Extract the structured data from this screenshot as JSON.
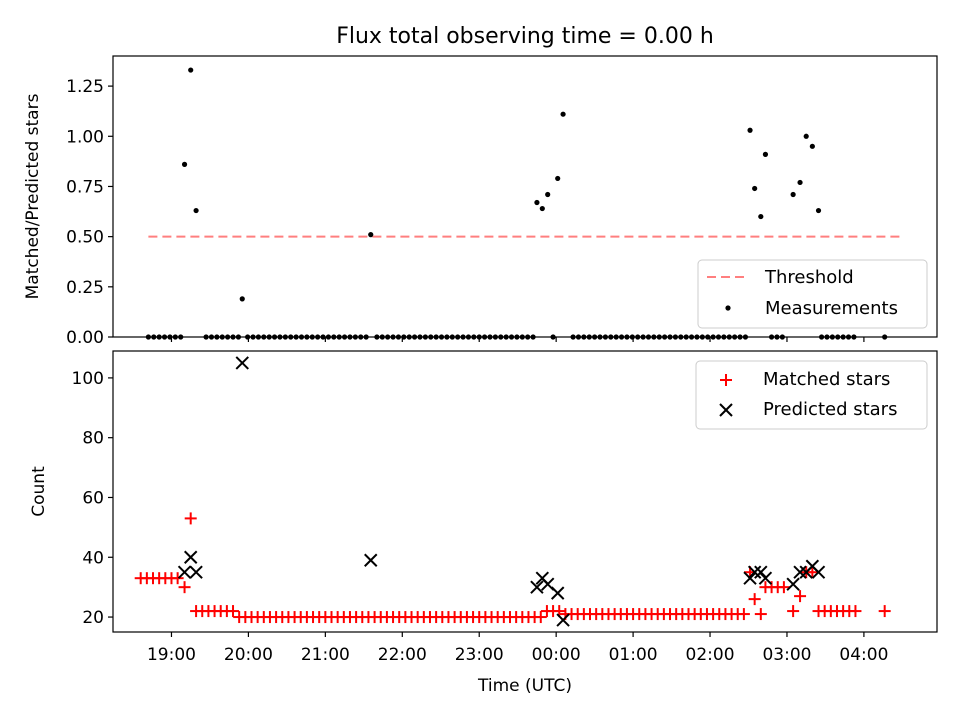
{
  "chart_data": [
    {
      "type": "scatter",
      "title": "Flux total observing time = 0.00 h",
      "xlabel": "",
      "ylabel": "Matched/Predicted stars",
      "x_unit": "hours since 18:00 UTC",
      "xlim": [
        0.24,
        10.95
      ],
      "ylim": [
        0.0,
        1.4
      ],
      "y_ticks": [
        0.0,
        0.25,
        0.5,
        0.75,
        1.0,
        1.25
      ],
      "y_tick_labels": [
        "0.00",
        "0.25",
        "0.50",
        "0.75",
        "1.00",
        "1.25"
      ],
      "x_ticks": [
        1,
        2,
        3,
        4,
        5,
        6,
        7,
        8,
        9,
        10
      ],
      "grid": false,
      "legend_position": "lower-right",
      "threshold": {
        "name": "Threshold",
        "y": 0.5,
        "x_range": [
          0.7,
          10.48
        ],
        "color": "#ff7f7f",
        "style": "dashed"
      },
      "measurements": {
        "name": "Measurements",
        "color": "#000000",
        "points": [
          [
            0.7,
            0.0
          ],
          [
            0.77,
            0.0
          ],
          [
            0.84,
            0.0
          ],
          [
            0.91,
            0.0
          ],
          [
            0.98,
            0.0
          ],
          [
            1.05,
            0.0
          ],
          [
            1.12,
            0.0
          ],
          [
            1.17,
            0.86
          ],
          [
            1.25,
            1.33
          ],
          [
            1.32,
            0.63
          ],
          [
            1.45,
            0.0
          ],
          [
            1.52,
            0.0
          ],
          [
            1.59,
            0.0
          ],
          [
            1.66,
            0.0
          ],
          [
            1.73,
            0.0
          ],
          [
            1.8,
            0.0
          ],
          [
            1.87,
            0.0
          ],
          [
            1.92,
            0.19
          ],
          [
            1.99,
            0.0
          ],
          [
            2.06,
            0.0
          ],
          [
            2.13,
            0.0
          ],
          [
            2.2,
            0.0
          ],
          [
            2.27,
            0.0
          ],
          [
            2.34,
            0.0
          ],
          [
            2.41,
            0.0
          ],
          [
            2.48,
            0.0
          ],
          [
            2.55,
            0.0
          ],
          [
            2.62,
            0.0
          ],
          [
            2.69,
            0.0
          ],
          [
            2.76,
            0.0
          ],
          [
            2.83,
            0.0
          ],
          [
            2.9,
            0.0
          ],
          [
            2.97,
            0.0
          ],
          [
            3.04,
            0.0
          ],
          [
            3.11,
            0.0
          ],
          [
            3.18,
            0.0
          ],
          [
            3.25,
            0.0
          ],
          [
            3.32,
            0.0
          ],
          [
            3.39,
            0.0
          ],
          [
            3.46,
            0.0
          ],
          [
            3.53,
            0.0
          ],
          [
            3.59,
            0.51
          ],
          [
            3.67,
            0.0
          ],
          [
            3.74,
            0.0
          ],
          [
            3.81,
            0.0
          ],
          [
            3.88,
            0.0
          ],
          [
            3.95,
            0.0
          ],
          [
            4.02,
            0.0
          ],
          [
            4.09,
            0.0
          ],
          [
            4.16,
            0.0
          ],
          [
            4.23,
            0.0
          ],
          [
            4.3,
            0.0
          ],
          [
            4.37,
            0.0
          ],
          [
            4.44,
            0.0
          ],
          [
            4.51,
            0.0
          ],
          [
            4.58,
            0.0
          ],
          [
            4.65,
            0.0
          ],
          [
            4.72,
            0.0
          ],
          [
            4.79,
            0.0
          ],
          [
            4.86,
            0.0
          ],
          [
            4.93,
            0.0
          ],
          [
            5.0,
            0.0
          ],
          [
            5.07,
            0.0
          ],
          [
            5.14,
            0.0
          ],
          [
            5.21,
            0.0
          ],
          [
            5.28,
            0.0
          ],
          [
            5.35,
            0.0
          ],
          [
            5.42,
            0.0
          ],
          [
            5.49,
            0.0
          ],
          [
            5.56,
            0.0
          ],
          [
            5.63,
            0.0
          ],
          [
            5.7,
            0.0
          ],
          [
            5.75,
            0.67
          ],
          [
            5.82,
            0.64
          ],
          [
            5.89,
            0.71
          ],
          [
            5.96,
            0.0
          ],
          [
            6.02,
            0.79
          ],
          [
            6.09,
            1.11
          ],
          [
            6.22,
            0.0
          ],
          [
            6.29,
            0.0
          ],
          [
            6.36,
            0.0
          ],
          [
            6.43,
            0.0
          ],
          [
            6.5,
            0.0
          ],
          [
            6.57,
            0.0
          ],
          [
            6.64,
            0.0
          ],
          [
            6.71,
            0.0
          ],
          [
            6.78,
            0.0
          ],
          [
            6.85,
            0.0
          ],
          [
            6.92,
            0.0
          ],
          [
            6.99,
            0.0
          ],
          [
            7.06,
            0.0
          ],
          [
            7.13,
            0.0
          ],
          [
            7.2,
            0.0
          ],
          [
            7.27,
            0.0
          ],
          [
            7.34,
            0.0
          ],
          [
            7.41,
            0.0
          ],
          [
            7.48,
            0.0
          ],
          [
            7.55,
            0.0
          ],
          [
            7.62,
            0.0
          ],
          [
            7.69,
            0.0
          ],
          [
            7.76,
            0.0
          ],
          [
            7.83,
            0.0
          ],
          [
            7.9,
            0.0
          ],
          [
            7.97,
            0.0
          ],
          [
            8.04,
            0.0
          ],
          [
            8.11,
            0.0
          ],
          [
            8.18,
            0.0
          ],
          [
            8.25,
            0.0
          ],
          [
            8.32,
            0.0
          ],
          [
            8.39,
            0.0
          ],
          [
            8.46,
            0.0
          ],
          [
            8.52,
            1.03
          ],
          [
            8.58,
            0.74
          ],
          [
            8.66,
            0.6
          ],
          [
            8.72,
            0.91
          ],
          [
            8.8,
            0.0
          ],
          [
            8.87,
            0.0
          ],
          [
            8.94,
            0.0
          ],
          [
            9.08,
            0.71
          ],
          [
            9.17,
            0.77
          ],
          [
            9.25,
            1.0
          ],
          [
            9.33,
            0.95
          ],
          [
            9.41,
            0.63
          ],
          [
            9.45,
            0.0
          ],
          [
            9.52,
            0.0
          ],
          [
            9.59,
            0.0
          ],
          [
            9.66,
            0.0
          ],
          [
            9.73,
            0.0
          ],
          [
            9.8,
            0.0
          ],
          [
            9.87,
            0.0
          ],
          [
            10.27,
            0.0
          ]
        ]
      },
      "legend": [
        "Threshold",
        "Measurements"
      ]
    },
    {
      "type": "scatter",
      "title": "",
      "xlabel": "Time (UTC)",
      "ylabel": "Count",
      "x_unit": "hours since 18:00 UTC",
      "xlim": [
        0.24,
        10.95
      ],
      "ylim": [
        15.0,
        109.0
      ],
      "y_ticks": [
        20,
        40,
        60,
        80,
        100
      ],
      "y_tick_labels": [
        "20",
        "40",
        "60",
        "80",
        "100"
      ],
      "x_ticks": [
        1,
        2,
        3,
        4,
        5,
        6,
        7,
        8,
        9,
        10
      ],
      "x_tick_labels": [
        "19:00",
        "20:00",
        "21:00",
        "22:00",
        "23:00",
        "00:00",
        "01:00",
        "02:00",
        "03:00",
        "04:00"
      ],
      "grid": false,
      "legend_position": "upper-right",
      "series": [
        {
          "name": "Matched stars",
          "marker": "plus",
          "color": "#ff0000",
          "points": [
            [
              0.6,
              33
            ],
            [
              0.68,
              33
            ],
            [
              0.76,
              33
            ],
            [
              0.84,
              33
            ],
            [
              0.92,
              33
            ],
            [
              1.0,
              33
            ],
            [
              1.08,
              33
            ],
            [
              1.17,
              30
            ],
            [
              1.25,
              53
            ],
            [
              1.32,
              22
            ],
            [
              1.4,
              22
            ],
            [
              1.48,
              22
            ],
            [
              1.56,
              22
            ],
            [
              1.64,
              22
            ],
            [
              1.72,
              22
            ],
            [
              1.8,
              22
            ],
            [
              1.88,
              20
            ],
            [
              1.96,
              20
            ],
            [
              2.04,
              20
            ],
            [
              2.12,
              20
            ],
            [
              2.2,
              20
            ],
            [
              2.28,
              20
            ],
            [
              2.36,
              20
            ],
            [
              2.44,
              20
            ],
            [
              2.52,
              20
            ],
            [
              2.6,
              20
            ],
            [
              2.68,
              20
            ],
            [
              2.76,
              20
            ],
            [
              2.84,
              20
            ],
            [
              2.92,
              20
            ],
            [
              3.0,
              20
            ],
            [
              3.08,
              20
            ],
            [
              3.16,
              20
            ],
            [
              3.24,
              20
            ],
            [
              3.32,
              20
            ],
            [
              3.4,
              20
            ],
            [
              3.48,
              20
            ],
            [
              3.56,
              20
            ],
            [
              3.64,
              20
            ],
            [
              3.72,
              20
            ],
            [
              3.8,
              20
            ],
            [
              3.88,
              20
            ],
            [
              3.96,
              20
            ],
            [
              4.04,
              20
            ],
            [
              4.12,
              20
            ],
            [
              4.2,
              20
            ],
            [
              4.28,
              20
            ],
            [
              4.36,
              20
            ],
            [
              4.44,
              20
            ],
            [
              4.52,
              20
            ],
            [
              4.6,
              20
            ],
            [
              4.68,
              20
            ],
            [
              4.76,
              20
            ],
            [
              4.84,
              20
            ],
            [
              4.92,
              20
            ],
            [
              5.0,
              20
            ],
            [
              5.08,
              20
            ],
            [
              5.16,
              20
            ],
            [
              5.24,
              20
            ],
            [
              5.32,
              20
            ],
            [
              5.4,
              20
            ],
            [
              5.48,
              20
            ],
            [
              5.56,
              20
            ],
            [
              5.64,
              20
            ],
            [
              5.72,
              20
            ],
            [
              5.8,
              20
            ],
            [
              5.88,
              22
            ],
            [
              5.96,
              22
            ],
            [
              6.04,
              22
            ],
            [
              6.12,
              21
            ],
            [
              6.2,
              21
            ],
            [
              6.28,
              21
            ],
            [
              6.36,
              21
            ],
            [
              6.44,
              21
            ],
            [
              6.52,
              21
            ],
            [
              6.6,
              21
            ],
            [
              6.68,
              21
            ],
            [
              6.76,
              21
            ],
            [
              6.84,
              21
            ],
            [
              6.92,
              21
            ],
            [
              7.0,
              21
            ],
            [
              7.08,
              21
            ],
            [
              7.16,
              21
            ],
            [
              7.24,
              21
            ],
            [
              7.32,
              21
            ],
            [
              7.4,
              21
            ],
            [
              7.48,
              21
            ],
            [
              7.56,
              21
            ],
            [
              7.64,
              21
            ],
            [
              7.72,
              21
            ],
            [
              7.8,
              21
            ],
            [
              7.88,
              21
            ],
            [
              7.96,
              21
            ],
            [
              8.04,
              21
            ],
            [
              8.12,
              21
            ],
            [
              8.2,
              21
            ],
            [
              8.28,
              21
            ],
            [
              8.36,
              21
            ],
            [
              8.44,
              21
            ],
            [
              8.52,
              35
            ],
            [
              8.58,
              26
            ],
            [
              8.66,
              21
            ],
            [
              8.72,
              30
            ],
            [
              8.8,
              30
            ],
            [
              8.88,
              30
            ],
            [
              8.96,
              30
            ],
            [
              9.08,
              22
            ],
            [
              9.17,
              27
            ],
            [
              9.25,
              35
            ],
            [
              9.33,
              35
            ],
            [
              9.41,
              22
            ],
            [
              9.49,
              22
            ],
            [
              9.57,
              22
            ],
            [
              9.65,
              22
            ],
            [
              9.73,
              22
            ],
            [
              9.81,
              22
            ],
            [
              9.89,
              22
            ],
            [
              10.27,
              22
            ]
          ]
        },
        {
          "name": "Predicted stars",
          "marker": "x",
          "color": "#000000",
          "points": [
            [
              1.17,
              35
            ],
            [
              1.25,
              40
            ],
            [
              1.32,
              35
            ],
            [
              1.92,
              105
            ],
            [
              3.59,
              39
            ],
            [
              5.75,
              30
            ],
            [
              5.82,
              33
            ],
            [
              5.89,
              31
            ],
            [
              6.02,
              28
            ],
            [
              6.09,
              19
            ],
            [
              8.52,
              33
            ],
            [
              8.58,
              35
            ],
            [
              8.66,
              35
            ],
            [
              8.72,
              33
            ],
            [
              9.08,
              31
            ],
            [
              9.17,
              35
            ],
            [
              9.25,
              35
            ],
            [
              9.33,
              37
            ],
            [
              9.41,
              35
            ]
          ]
        }
      ],
      "legend": [
        "Matched stars",
        "Predicted stars"
      ]
    }
  ]
}
